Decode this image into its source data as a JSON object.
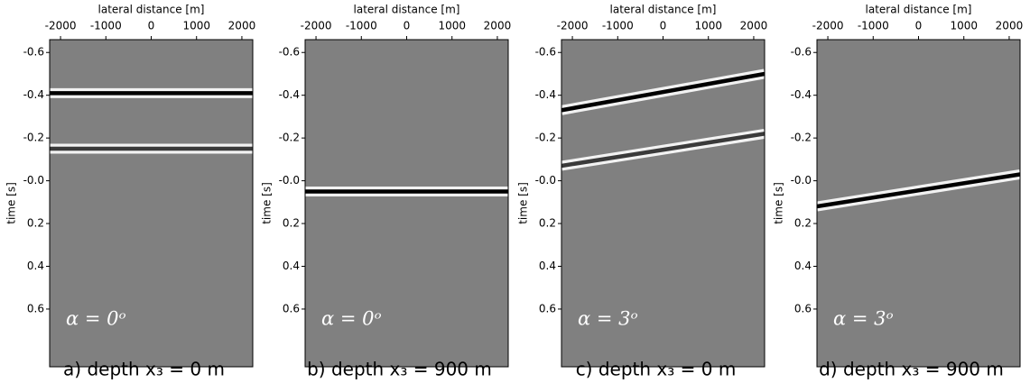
{
  "chart_data": [
    {
      "type": "line",
      "xlabel": "lateral distance [m]",
      "ylabel": "time [s]",
      "xlim": [
        -2240,
        2240
      ],
      "xticks": [
        -2000,
        -1000,
        0,
        1000,
        2000
      ],
      "ylim": [
        -0.66,
        0.87
      ],
      "yticks": [
        -0.6,
        -0.4,
        -0.2,
        {
          "value": 0,
          "label": "-0.0"
        },
        0.2,
        0.4,
        0.6
      ],
      "background": "#808080",
      "series": [
        {
          "color": "#000000",
          "x": [
            -2240,
            2240
          ],
          "values": [
            -0.41,
            -0.41
          ]
        },
        {
          "color": "#3a3a3a",
          "x": [
            -2240,
            2240
          ],
          "values": [
            -0.15,
            -0.15
          ]
        }
      ],
      "annotation": "α = 0ᵒ",
      "caption": "a) depth x₃ = 0 m"
    },
    {
      "type": "line",
      "xlabel": "lateral distance [m]",
      "ylabel": "time [s]",
      "xlim": [
        -2240,
        2240
      ],
      "xticks": [
        -2000,
        -1000,
        0,
        1000,
        2000
      ],
      "ylim": [
        -0.66,
        0.87
      ],
      "yticks": [
        -0.6,
        -0.4,
        -0.2,
        {
          "value": 0,
          "label": "-0.0"
        },
        0.2,
        0.4,
        0.6
      ],
      "background": "#808080",
      "series": [
        {
          "color": "#000000",
          "x": [
            -2240,
            2240
          ],
          "values": [
            0.05,
            0.05
          ]
        }
      ],
      "annotation": "α = 0ᵒ",
      "caption": "b) depth x₃ = 900 m"
    },
    {
      "type": "line",
      "xlabel": "lateral distance [m]",
      "ylabel": "time [s]",
      "xlim": [
        -2240,
        2240
      ],
      "xticks": [
        -2000,
        -1000,
        0,
        1000,
        2000
      ],
      "ylim": [
        -0.66,
        0.87
      ],
      "yticks": [
        -0.6,
        -0.4,
        -0.2,
        {
          "value": 0,
          "label": "-0.0"
        },
        0.2,
        0.4,
        0.6
      ],
      "background": "#808080",
      "series": [
        {
          "color": "#000000",
          "x": [
            -2240,
            2240
          ],
          "values": [
            -0.33,
            -0.5
          ]
        },
        {
          "color": "#3a3a3a",
          "x": [
            -2240,
            2240
          ],
          "values": [
            -0.07,
            -0.22
          ]
        }
      ],
      "annotation": "α = 3ᵒ",
      "caption": "c) depth x₃ = 0 m"
    },
    {
      "type": "line",
      "xlabel": "lateral distance [m]",
      "ylabel": "time [s]",
      "xlim": [
        -2240,
        2240
      ],
      "xticks": [
        -2000,
        -1000,
        0,
        1000,
        2000
      ],
      "ylim": [
        -0.66,
        0.87
      ],
      "yticks": [
        -0.6,
        -0.4,
        -0.2,
        {
          "value": 0,
          "label": "-0.0"
        },
        0.2,
        0.4,
        0.6
      ],
      "background": "#808080",
      "series": [
        {
          "color": "#000000",
          "x": [
            -2240,
            2240
          ],
          "values": [
            0.12,
            -0.03
          ]
        }
      ],
      "annotation": "α = 3ᵒ",
      "caption": "d) depth x₃ = 900 m"
    }
  ]
}
